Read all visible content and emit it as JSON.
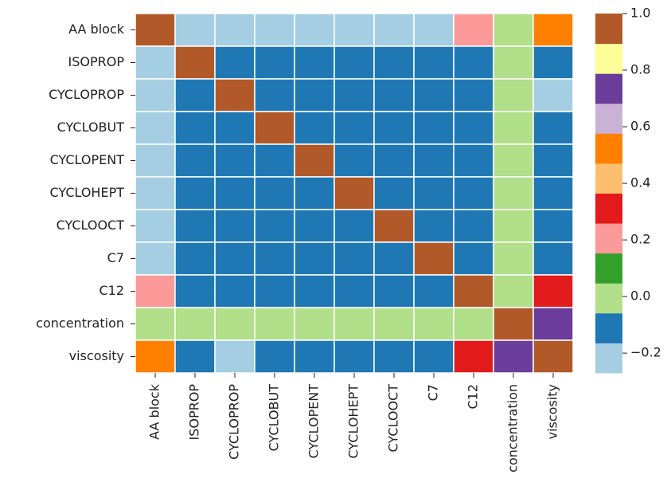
{
  "chart_data": {
    "type": "heatmap",
    "x": [
      "AA block",
      "ISOPROP",
      "CYCLOPROP",
      "CYCLOBUT",
      "CYCLOPENT",
      "CYCLOHEPT",
      "CYCLOOCT",
      "C7",
      "C12",
      "concentration",
      "viscosity"
    ],
    "categories": [
      "AA block",
      "ISOPROP",
      "CYCLOPROP",
      "CYCLOBUT",
      "CYCLOPENT",
      "CYCLOHEPT",
      "CYCLOOCT",
      "C7",
      "C12",
      "concentration",
      "viscosity"
    ],
    "values": [
      [
        1,
        -0.22,
        -0.22,
        -0.22,
        -0.22,
        -0.22,
        -0.22,
        -0.22,
        0.2,
        0.0,
        0.52
      ],
      [
        -0.22,
        1,
        -0.1,
        -0.1,
        -0.1,
        -0.1,
        -0.1,
        -0.1,
        -0.1,
        0.0,
        -0.1
      ],
      [
        -0.22,
        -0.1,
        1,
        -0.1,
        -0.1,
        -0.1,
        -0.1,
        -0.1,
        -0.1,
        0.0,
        -0.2
      ],
      [
        -0.22,
        -0.1,
        -0.1,
        1,
        -0.1,
        -0.1,
        -0.1,
        -0.1,
        -0.1,
        0.0,
        -0.1
      ],
      [
        -0.22,
        -0.1,
        -0.1,
        -0.1,
        1,
        -0.1,
        -0.1,
        -0.1,
        -0.1,
        0.0,
        -0.1
      ],
      [
        -0.22,
        -0.1,
        -0.1,
        -0.1,
        -0.1,
        1,
        -0.1,
        -0.1,
        -0.1,
        0.0,
        -0.1
      ],
      [
        -0.22,
        -0.1,
        -0.1,
        -0.1,
        -0.1,
        -0.1,
        1,
        -0.1,
        -0.1,
        0.0,
        -0.1
      ],
      [
        -0.22,
        -0.1,
        -0.1,
        -0.1,
        -0.1,
        -0.1,
        -0.1,
        1,
        -0.1,
        0.0,
        -0.1
      ],
      [
        0.2,
        -0.1,
        -0.1,
        -0.1,
        -0.1,
        -0.1,
        -0.1,
        -0.1,
        1,
        0.0,
        0.3
      ],
      [
        0.0,
        0.0,
        0.0,
        0.0,
        0.0,
        0.0,
        0.0,
        0.0,
        0.0,
        1,
        0.72
      ],
      [
        0.52,
        -0.1,
        -0.2,
        -0.1,
        -0.1,
        -0.1,
        -0.1,
        -0.1,
        0.3,
        0.72,
        1
      ]
    ],
    "colors": [
      "#a6cee3",
      "#1f78b4",
      "#b2df8a",
      "#33a02c",
      "#fb9a99",
      "#e31a1c",
      "#fdbf6f",
      "#ff7f00",
      "#cab2d6",
      "#6a3d9a",
      "#ffff99",
      "#b15928"
    ],
    "clim": [
      -0.27,
      1.0
    ],
    "cticks": [
      {
        "value": -0.2,
        "label": "−0.2"
      },
      {
        "value": 0.0,
        "label": "0.0"
      },
      0.2,
      0.4,
      0.6,
      0.8,
      {
        "value": 1.0,
        "label": "1.0"
      }
    ]
  }
}
